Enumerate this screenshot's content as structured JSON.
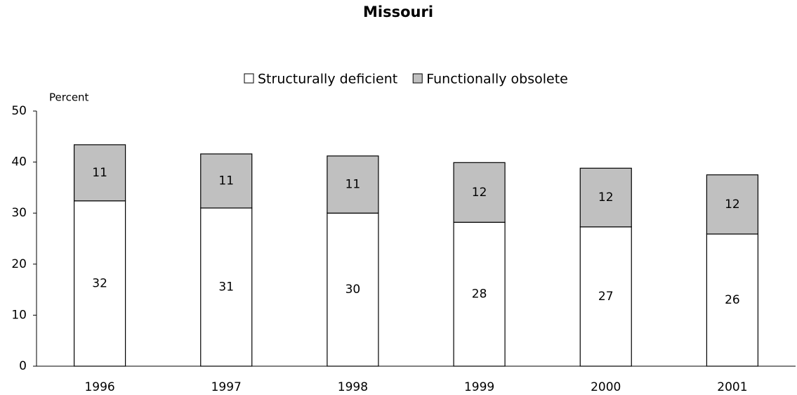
{
  "chart_data": {
    "type": "stacked_bar",
    "title": "Missouri",
    "y_label": "Percent",
    "categories": [
      "1996",
      "1997",
      "1998",
      "1999",
      "2000",
      "2001"
    ],
    "series": [
      {
        "name": "Structurally deficient",
        "color": "#ffffff",
        "values": [
          32.4,
          31.0,
          30.0,
          28.2,
          27.3,
          25.9
        ],
        "value_labels": [
          "32",
          "31",
          "30",
          "28",
          "27",
          "26"
        ]
      },
      {
        "name": "Functionally obsolete",
        "color": "#c0c0c0",
        "values": [
          11.0,
          10.6,
          11.2,
          11.7,
          11.5,
          11.6
        ],
        "value_labels": [
          "11",
          "11",
          "11",
          "12",
          "12",
          "12"
        ]
      }
    ],
    "ylim": [
      0,
      50
    ],
    "yticks": [
      0,
      10,
      20,
      30,
      40,
      50
    ],
    "legend": "top"
  }
}
